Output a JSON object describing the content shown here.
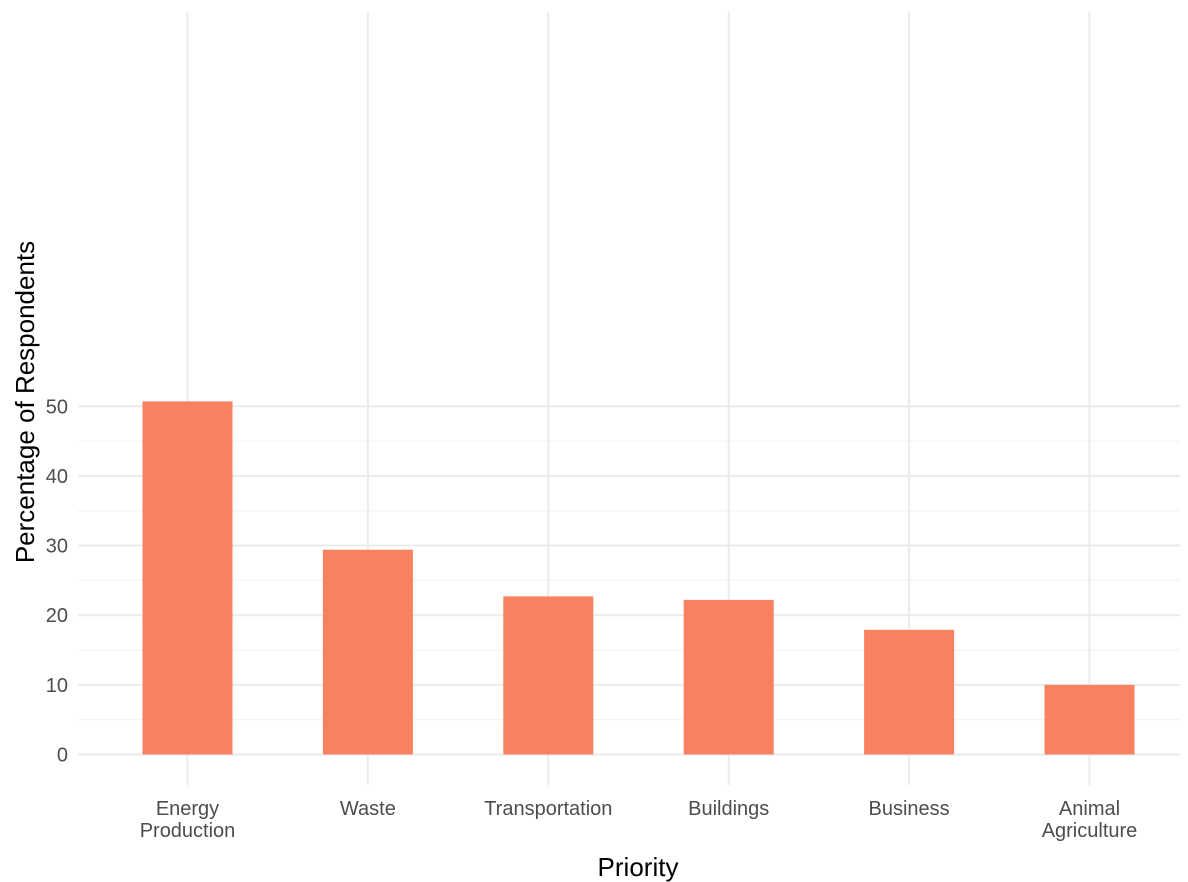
{
  "chart_data": {
    "type": "bar",
    "title": "",
    "xlabel": "Priority",
    "ylabel": "Percentage of Respondents",
    "categories": [
      [
        "Energy",
        "Production"
      ],
      [
        "Waste"
      ],
      [
        "Transportation"
      ],
      [
        "Buildings"
      ],
      [
        "Business"
      ],
      [
        "Animal",
        "Agriculture"
      ]
    ],
    "values": [
      50.7,
      29.4,
      22.7,
      22.2,
      17.9,
      10.0
    ],
    "ylim": [
      0,
      53
    ],
    "yticks": [
      0,
      10,
      20,
      30,
      40,
      50
    ],
    "grid": true,
    "legend": "none",
    "colors": {
      "bar": "#f8825f",
      "grid": "#ebebeb",
      "tick_text": "#4d4d4d"
    }
  }
}
